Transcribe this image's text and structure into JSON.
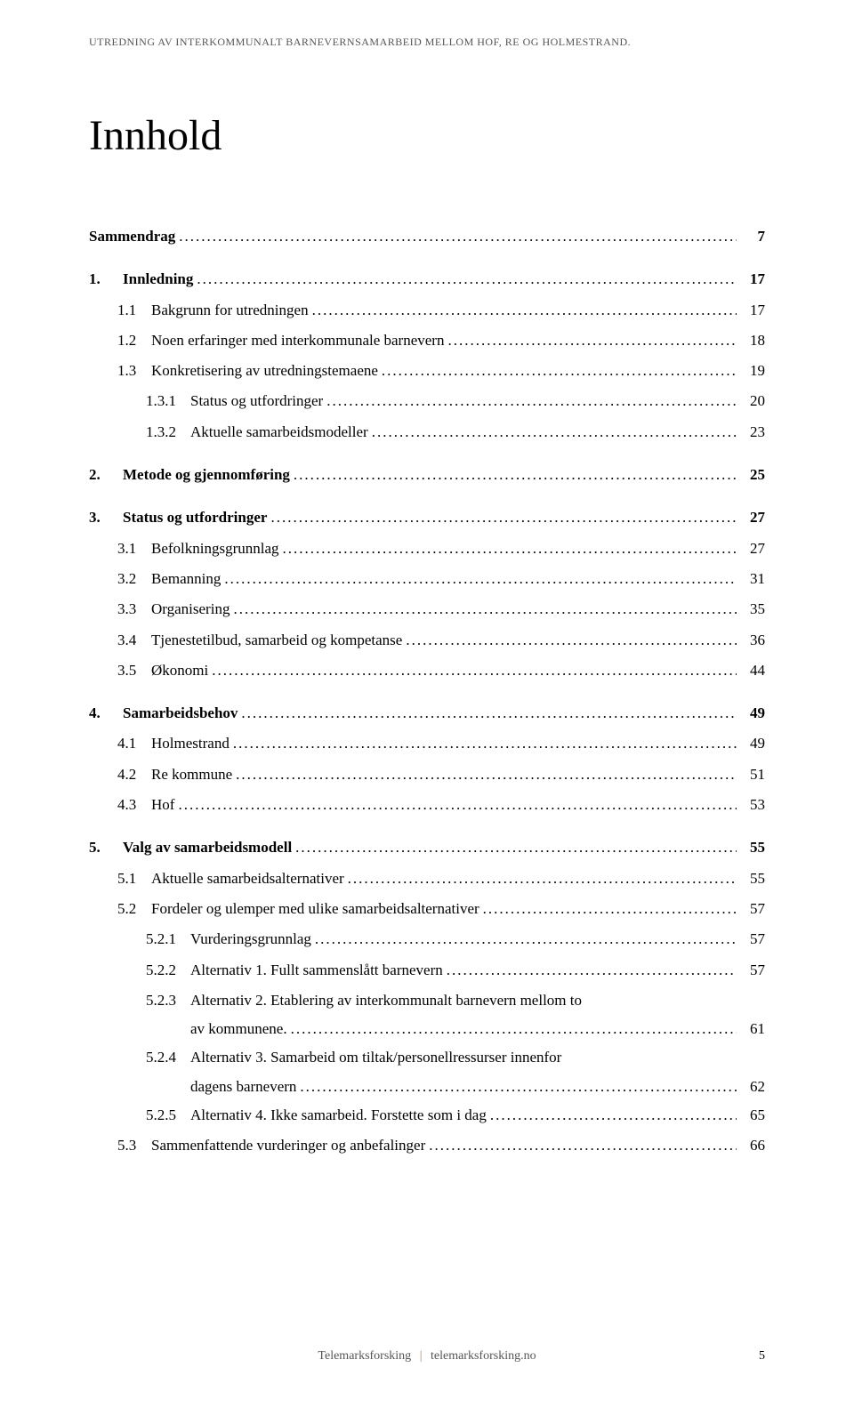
{
  "header": "UTREDNING AV INTERKOMMUNALT BARNEVERNSAMARBEID MELLOM HOF, RE OG HOLMESTRAND.",
  "title": "Innhold",
  "toc": [
    {
      "type": "entry",
      "number": "",
      "label": "Sammendrag",
      "page": "7",
      "bold": true,
      "indent": 0
    },
    {
      "type": "gap"
    },
    {
      "type": "entry",
      "number": "1.",
      "label": "Innledning",
      "page": "17",
      "bold": true,
      "indent": 0
    },
    {
      "type": "entry",
      "number": "1.1",
      "label": "Bakgrunn for utredningen",
      "page": "17",
      "bold": false,
      "indent": 1
    },
    {
      "type": "entry",
      "number": "1.2",
      "label": "Noen erfaringer med interkommunale barnevern",
      "page": "18",
      "bold": false,
      "indent": 1
    },
    {
      "type": "entry",
      "number": "1.3",
      "label": "Konkretisering av utredningstemaene",
      "page": "19",
      "bold": false,
      "indent": 1
    },
    {
      "type": "entry",
      "number": "1.3.1",
      "label": "Status og utfordringer",
      "page": "20",
      "bold": false,
      "indent": 2
    },
    {
      "type": "entry",
      "number": "1.3.2",
      "label": "Aktuelle samarbeidsmodeller",
      "page": "23",
      "bold": false,
      "indent": 2
    },
    {
      "type": "gap"
    },
    {
      "type": "entry",
      "number": "2.",
      "label": "Metode og gjennomføring",
      "page": "25",
      "bold": true,
      "indent": 0
    },
    {
      "type": "gap"
    },
    {
      "type": "entry",
      "number": "3.",
      "label": "Status og utfordringer",
      "page": "27",
      "bold": true,
      "indent": 0
    },
    {
      "type": "entry",
      "number": "3.1",
      "label": "Befolkningsgrunnlag",
      "page": "27",
      "bold": false,
      "indent": 1
    },
    {
      "type": "entry",
      "number": "3.2",
      "label": "Bemanning",
      "page": "31",
      "bold": false,
      "indent": 1
    },
    {
      "type": "entry",
      "number": "3.3",
      "label": "Organisering",
      "page": "35",
      "bold": false,
      "indent": 1
    },
    {
      "type": "entry",
      "number": "3.4",
      "label": "Tjenestetilbud, samarbeid og kompetanse",
      "page": "36",
      "bold": false,
      "indent": 1
    },
    {
      "type": "entry",
      "number": "3.5",
      "label": "Økonomi",
      "page": "44",
      "bold": false,
      "indent": 1
    },
    {
      "type": "gap"
    },
    {
      "type": "entry",
      "number": "4.",
      "label": "Samarbeidsbehov",
      "page": "49",
      "bold": true,
      "indent": 0
    },
    {
      "type": "entry",
      "number": "4.1",
      "label": "Holmestrand",
      "page": "49",
      "bold": false,
      "indent": 1
    },
    {
      "type": "entry",
      "number": "4.2",
      "label": "Re kommune",
      "page": "51",
      "bold": false,
      "indent": 1
    },
    {
      "type": "entry",
      "number": "4.3",
      "label": "Hof",
      "page": "53",
      "bold": false,
      "indent": 1
    },
    {
      "type": "gap"
    },
    {
      "type": "entry",
      "number": "5.",
      "label": "Valg av samarbeidsmodell",
      "page": "55",
      "bold": true,
      "indent": 0
    },
    {
      "type": "entry",
      "number": "5.1",
      "label": "Aktuelle samarbeidsalternativer",
      "page": "55",
      "bold": false,
      "indent": 1
    },
    {
      "type": "entry",
      "number": "5.2",
      "label": "Fordeler og ulemper med ulike samarbeidsalternativer",
      "page": "57",
      "bold": false,
      "indent": 1
    },
    {
      "type": "entry",
      "number": "5.2.1",
      "label": "Vurderingsgrunnlag",
      "page": "57",
      "bold": false,
      "indent": 2
    },
    {
      "type": "entry",
      "number": "5.2.2",
      "label": "Alternativ 1. Fullt sammenslått barnevern",
      "page": "57",
      "bold": false,
      "indent": 2
    },
    {
      "type": "multiline",
      "number": "5.2.3",
      "label1": "Alternativ 2. Etablering av interkommunalt barnevern mellom to",
      "label2": "av kommunene.",
      "page": "61",
      "indent": 2
    },
    {
      "type": "multiline",
      "number": "5.2.4",
      "label1": "Alternativ 3. Samarbeid om tiltak/personellressurser innenfor",
      "label2": "dagens barnevern",
      "page": "62",
      "indent": 2
    },
    {
      "type": "entry",
      "number": "5.2.5",
      "label": "Alternativ 4. Ikke samarbeid. Forstette som i dag",
      "page": "65",
      "bold": false,
      "indent": 2
    },
    {
      "type": "entry",
      "number": "5.3",
      "label": "Sammenfattende vurderinger og anbefalinger",
      "page": "66",
      "bold": false,
      "indent": 1
    }
  ],
  "footer": {
    "left": "Telemarksforsking",
    "right": "telemarksforsking.no",
    "page": "5"
  },
  "colors": {
    "text": "#000000",
    "header_text": "#555555",
    "footer_text": "#555555",
    "divider": "#b0843f",
    "background": "#ffffff"
  },
  "typography": {
    "header_fontsize": 12,
    "title_fontsize": 48,
    "toc_fontsize": 17,
    "footer_fontsize": 14,
    "font_family": "Georgia, serif"
  }
}
